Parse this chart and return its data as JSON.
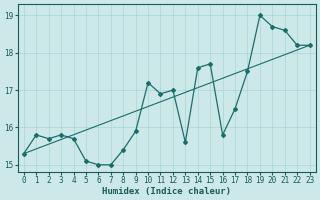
{
  "title": "",
  "xlabel": "Humidex (Indice chaleur)",
  "bg_color": "#cce8e8",
  "line_color": "#1a6e6a",
  "grid_color": "#aad4d4",
  "x_data": [
    0,
    1,
    2,
    3,
    4,
    5,
    6,
    7,
    8,
    9,
    10,
    11,
    12,
    13,
    14,
    15,
    16,
    17,
    18,
    19,
    20,
    21,
    22,
    23
  ],
  "y_data": [
    15.3,
    15.8,
    15.7,
    15.8,
    15.7,
    15.1,
    15.0,
    15.0,
    15.4,
    15.9,
    17.2,
    16.9,
    17.0,
    15.6,
    17.6,
    17.7,
    15.8,
    16.5,
    17.5,
    19.0,
    18.7,
    18.6,
    18.2,
    18.2
  ],
  "xlim": [
    -0.5,
    23.5
  ],
  "ylim": [
    14.8,
    19.3
  ],
  "yticks": [
    15,
    16,
    17,
    18,
    19
  ],
  "xticks": [
    0,
    1,
    2,
    3,
    4,
    5,
    6,
    7,
    8,
    9,
    10,
    11,
    12,
    13,
    14,
    15,
    16,
    17,
    18,
    19,
    20,
    21,
    22,
    23
  ],
  "trend_x": [
    0,
    23
  ],
  "trend_y": [
    15.3,
    18.2
  ],
  "font_color": "#1a5a5a",
  "label_fontsize": 6.5,
  "tick_fontsize": 5.5
}
